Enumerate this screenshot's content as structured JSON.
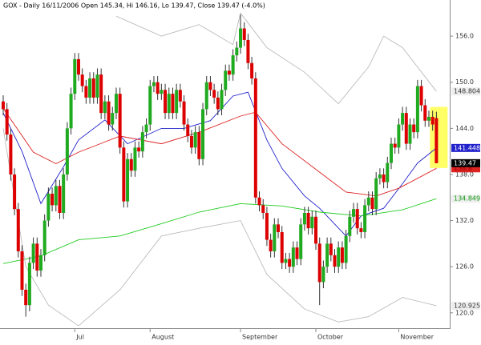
{
  "chart_data": {
    "type": "candlestick",
    "title": "GOX - Daily 16/11/2006 Open 145.34, Hi 146.16, Lo 139.47, Close 139.47 (-4.0%)",
    "xlim": [
      -0.85,
      118.75
    ],
    "ylim": [
      118,
      160.7
    ],
    "yticks": [
      {
        "value": 120,
        "label": "120.0"
      },
      {
        "value": 126,
        "label": "126.0"
      },
      {
        "value": 132,
        "label": "132.0"
      },
      {
        "value": 138,
        "label": "138.0"
      },
      {
        "value": 144,
        "label": "144.0"
      },
      {
        "value": 150,
        "label": "150.0"
      },
      {
        "value": 156,
        "label": "156.0"
      }
    ],
    "xticks": [
      {
        "value": 19,
        "label": "Jul"
      },
      {
        "value": 39,
        "label": "August"
      },
      {
        "value": 63,
        "label": "September"
      },
      {
        "value": 83,
        "label": "October"
      },
      {
        "value": 105,
        "label": "November"
      }
    ],
    "up_color": "#1faa1f",
    "down_color": "#dd0000",
    "open": [
      147.5,
      146.5,
      143.2,
      138.0,
      133.5,
      128.0,
      123.0,
      121.0,
      126.5,
      129.0,
      125.5,
      127.5,
      132.0,
      135.5,
      134.0,
      136.5,
      133.0,
      138.0,
      144.0,
      148.5,
      153.0,
      151.0,
      149.5,
      148.0,
      150.5,
      148.0,
      151.0,
      146.0,
      147.5,
      144.5,
      146.0,
      148.5,
      141.5,
      134.5,
      140.0,
      138.5,
      141.5,
      141.0,
      143.5,
      144.5,
      149.5,
      150.0,
      148.5,
      149.0,
      146.0,
      148.5,
      146.0,
      149.0,
      147.5,
      144.5,
      143.0,
      141.5,
      143.5,
      140.0,
      146.5,
      150.0,
      149.0,
      148.0,
      146.5,
      149.0,
      151.5,
      151.0,
      153.5,
      154.5,
      157.0,
      155.5,
      152.5,
      150.5,
      135.0,
      134.0,
      133.0,
      129.5,
      128.0,
      131.5,
      130.5,
      126.5,
      127.0,
      126.0,
      128.5,
      127.0,
      131.5,
      133.0,
      131.0,
      132.5,
      129.0,
      124.0,
      126.0,
      129.0,
      127.5,
      126.0,
      128.5,
      126.5,
      130.0,
      132.5,
      133.5,
      131.0,
      130.5,
      134.0,
      135.0,
      133.5,
      137.5,
      138.0,
      137.0,
      139.5,
      142.0,
      141.5,
      144.5,
      146.0,
      142.0,
      144.5,
      143.5,
      149.5,
      147.0,
      145.0,
      145.5,
      145.34
    ],
    "high": [
      148.3,
      147.3,
      144.0,
      138.8,
      134.3,
      128.8,
      123.8,
      127.3,
      129.8,
      129.8,
      128.3,
      132.8,
      136.3,
      136.3,
      137.3,
      137.3,
      138.8,
      144.8,
      149.3,
      153.8,
      153.8,
      151.8,
      150.3,
      151.3,
      151.3,
      151.8,
      151.8,
      148.3,
      148.3,
      146.8,
      149.3,
      149.3,
      142.3,
      140.8,
      140.8,
      142.3,
      142.3,
      144.3,
      145.3,
      150.3,
      150.8,
      150.8,
      149.8,
      149.8,
      149.3,
      149.3,
      149.8,
      149.8,
      148.3,
      145.3,
      143.8,
      144.3,
      144.3,
      147.3,
      150.8,
      150.8,
      149.8,
      148.8,
      149.8,
      152.3,
      152.3,
      154.3,
      155.3,
      158.8,
      157.8,
      156.3,
      153.3,
      151.3,
      135.8,
      134.8,
      133.8,
      130.3,
      132.3,
      132.3,
      131.3,
      127.8,
      127.8,
      129.3,
      129.3,
      132.3,
      133.8,
      133.8,
      133.3,
      133.3,
      129.8,
      126.8,
      129.8,
      129.8,
      128.3,
      129.3,
      129.3,
      130.8,
      133.3,
      134.3,
      134.3,
      131.8,
      134.8,
      135.8,
      135.8,
      138.3,
      138.8,
      138.8,
      140.3,
      142.8,
      142.8,
      145.3,
      146.8,
      146.8,
      145.3,
      145.3,
      150.3,
      150.3,
      147.8,
      146.3,
      146.3,
      146.16
    ],
    "low": [
      145.7,
      142.4,
      137.2,
      132.7,
      127.2,
      122.2,
      119.5,
      120.2,
      125.7,
      124.7,
      124.7,
      126.7,
      131.2,
      133.2,
      133.2,
      132.2,
      132.2,
      137.2,
      143.2,
      147.7,
      150.2,
      148.7,
      147.2,
      147.2,
      147.2,
      147.2,
      145.2,
      145.2,
      143.7,
      143.7,
      145.2,
      140.7,
      133.7,
      133.7,
      137.7,
      137.7,
      140.2,
      140.2,
      142.7,
      143.7,
      148.7,
      147.7,
      147.7,
      145.2,
      145.2,
      145.2,
      145.2,
      146.7,
      143.7,
      142.2,
      140.7,
      140.7,
      139.2,
      139.2,
      145.7,
      148.2,
      147.2,
      145.7,
      145.7,
      148.2,
      150.2,
      150.2,
      152.7,
      153.7,
      154.7,
      151.7,
      149.7,
      134.2,
      133.2,
      132.2,
      128.7,
      127.2,
      127.2,
      129.7,
      125.7,
      125.7,
      125.2,
      125.2,
      126.2,
      126.2,
      130.7,
      130.2,
      130.2,
      128.2,
      121.0,
      123.2,
      125.2,
      126.7,
      125.2,
      125.2,
      125.7,
      125.7,
      129.2,
      131.7,
      130.2,
      129.7,
      129.7,
      133.2,
      132.7,
      132.7,
      136.7,
      136.2,
      136.2,
      138.7,
      140.7,
      140.7,
      143.7,
      141.2,
      141.2,
      142.7,
      142.7,
      146.2,
      144.2,
      144.2,
      143.7,
      139.47
    ],
    "close": [
      146.5,
      143.2,
      138.0,
      133.5,
      128.0,
      123.0,
      121.0,
      126.5,
      129.0,
      125.5,
      127.5,
      132.0,
      135.5,
      134.0,
      136.5,
      133.0,
      138.0,
      144.0,
      148.5,
      153.0,
      151.0,
      149.5,
      148.0,
      150.5,
      148.0,
      151.0,
      146.0,
      147.5,
      144.5,
      146.0,
      148.5,
      141.5,
      134.5,
      140.0,
      138.5,
      141.5,
      141.0,
      143.5,
      144.5,
      149.5,
      150.0,
      148.5,
      149.0,
      146.0,
      148.5,
      146.0,
      149.0,
      147.5,
      144.5,
      143.0,
      141.5,
      143.5,
      140.0,
      146.5,
      150.0,
      149.0,
      148.0,
      146.5,
      149.0,
      151.5,
      151.0,
      153.5,
      154.5,
      157.0,
      155.5,
      152.5,
      150.5,
      135.0,
      134.0,
      133.0,
      129.5,
      128.0,
      131.5,
      130.5,
      126.5,
      127.0,
      126.0,
      128.5,
      127.0,
      131.5,
      133.0,
      131.0,
      132.5,
      129.0,
      124.0,
      126.0,
      129.0,
      127.5,
      126.0,
      128.5,
      126.5,
      130.0,
      132.5,
      133.5,
      131.0,
      130.5,
      134.0,
      135.0,
      133.5,
      137.5,
      138.0,
      137.0,
      139.5,
      142.0,
      141.5,
      144.5,
      146.0,
      142.0,
      144.5,
      143.5,
      149.5,
      147.0,
      145.0,
      145.5,
      144.5,
      139.47
    ],
    "close_tag_color": "#000000",
    "series": [
      {
        "color": "#2222cc",
        "x": [
          0,
          5,
          10,
          16,
          20,
          27,
          33,
          42,
          48,
          55,
          61,
          65,
          70,
          74,
          80,
          84,
          91,
          95,
          101,
          106,
          110,
          115
        ],
        "values": [
          146,
          141,
          134.2,
          139,
          142.5,
          145.1,
          142,
          144,
          144,
          145,
          148.2,
          148.7,
          142.5,
          138.8,
          135.2,
          133.6,
          130,
          132.6,
          133.6,
          136.8,
          139.5,
          141.448
        ]
      },
      {
        "color": "#dd2222",
        "x": [
          0,
          8,
          14,
          20,
          31,
          42,
          52,
          63,
          67,
          74,
          84,
          91,
          99,
          105,
          115
        ],
        "values": [
          146.6,
          140.9,
          139.4,
          140.9,
          143,
          142,
          143.5,
          145.6,
          146.1,
          142,
          138.3,
          135.7,
          135.2,
          136.2,
          138.8
        ]
      },
      {
        "color": "#22cc22",
        "x": [
          0,
          10,
          20,
          31,
          42,
          52,
          63,
          74,
          84,
          95,
          106,
          115
        ],
        "values": [
          126.4,
          127.4,
          129.5,
          130,
          131.6,
          133.1,
          134.2,
          133.9,
          133.1,
          132.6,
          133.4,
          134.849
        ]
      },
      {
        "color": "#bbbbbb",
        "x": [
          30,
          42,
          52,
          61,
          63,
          70,
          80,
          89,
          97,
          101,
          106,
          115
        ],
        "values": [
          158.6,
          156,
          157.5,
          154.9,
          159,
          154.5,
          151.3,
          147.2,
          152,
          156,
          154.5,
          148.804
        ]
      },
      {
        "color": "#bbbbbb",
        "x": [
          0,
          6,
          12,
          20,
          31,
          42,
          52,
          63,
          70,
          80,
          89,
          97,
          106,
          115
        ],
        "values": [
          144,
          126,
          121,
          118.3,
          123,
          130,
          131,
          132,
          125,
          120.5,
          118.8,
          119.5,
          122,
          120.925
        ]
      }
    ],
    "highlight_color": "#ffff66"
  }
}
